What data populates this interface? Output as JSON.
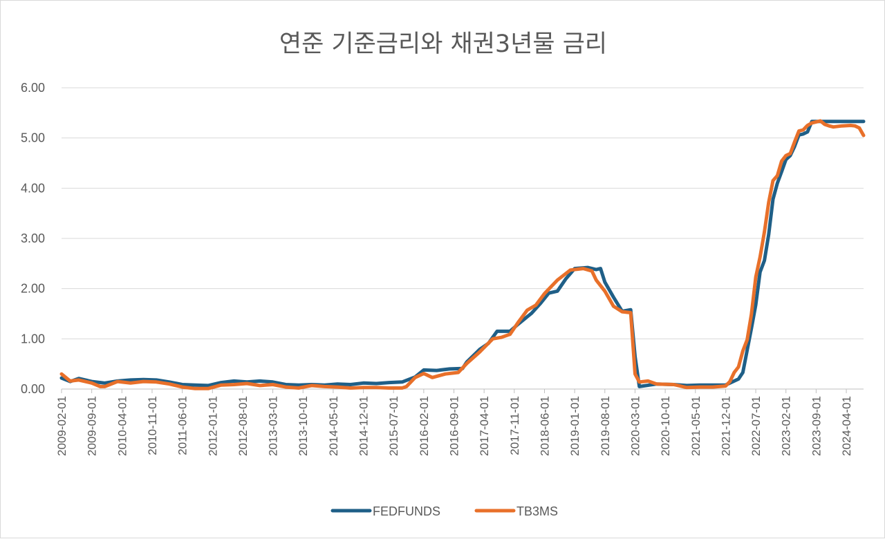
{
  "chart_data": {
    "type": "line",
    "title": "연준 기준금리와 채권3년물 금리",
    "xlabel": "",
    "ylabel": "",
    "ylim": [
      0,
      6
    ],
    "y_ticks": [
      "0.00",
      "1.00",
      "2.00",
      "3.00",
      "4.00",
      "5.00",
      "6.00"
    ],
    "x_tick_labels": [
      "2009-02-01",
      "2009-09-01",
      "2010-04-01",
      "2010-11-01",
      "2011-06-01",
      "2012-01-01",
      "2012-08-01",
      "2013-03-01",
      "2013-10-01",
      "2014-05-01",
      "2014-12-01",
      "2015-07-01",
      "2016-02-01",
      "2016-09-01",
      "2017-04-01",
      "2017-11-01",
      "2018-06-01",
      "2019-01-01",
      "2019-08-01",
      "2020-03-01",
      "2020-10-01",
      "2021-05-01",
      "2021-12-01",
      "2022-07-01",
      "2023-02-01",
      "2023-09-01",
      "2024-04-01"
    ],
    "x_range": [
      "2009-02-01",
      "2024-08-01"
    ],
    "grid": "horizontal",
    "legend_position": "bottom",
    "colors": {
      "FEDFUNDS": "#1f5f87",
      "TB3MS": "#e8702a"
    },
    "series": [
      {
        "name": "FEDFUNDS",
        "points": [
          [
            "2009-02-01",
            0.22
          ],
          [
            "2009-04-01",
            0.15
          ],
          [
            "2009-06-01",
            0.21
          ],
          [
            "2009-09-01",
            0.15
          ],
          [
            "2009-12-01",
            0.12
          ],
          [
            "2010-03-01",
            0.16
          ],
          [
            "2010-06-01",
            0.18
          ],
          [
            "2010-09-01",
            0.19
          ],
          [
            "2010-12-01",
            0.18
          ],
          [
            "2011-03-01",
            0.14
          ],
          [
            "2011-06-01",
            0.09
          ],
          [
            "2011-09-01",
            0.08
          ],
          [
            "2011-12-01",
            0.07
          ],
          [
            "2012-03-01",
            0.13
          ],
          [
            "2012-06-01",
            0.16
          ],
          [
            "2012-09-01",
            0.14
          ],
          [
            "2012-12-01",
            0.16
          ],
          [
            "2013-03-01",
            0.14
          ],
          [
            "2013-06-01",
            0.09
          ],
          [
            "2013-09-01",
            0.08
          ],
          [
            "2013-12-01",
            0.09
          ],
          [
            "2014-03-01",
            0.08
          ],
          [
            "2014-06-01",
            0.1
          ],
          [
            "2014-09-01",
            0.09
          ],
          [
            "2014-12-01",
            0.12
          ],
          [
            "2015-03-01",
            0.11
          ],
          [
            "2015-06-01",
            0.13
          ],
          [
            "2015-09-01",
            0.14
          ],
          [
            "2015-12-01",
            0.24
          ],
          [
            "2016-02-01",
            0.38
          ],
          [
            "2016-05-01",
            0.37
          ],
          [
            "2016-08-01",
            0.4
          ],
          [
            "2016-11-01",
            0.41
          ],
          [
            "2016-12-01",
            0.54
          ],
          [
            "2017-03-01",
            0.79
          ],
          [
            "2017-05-01",
            0.91
          ],
          [
            "2017-07-01",
            1.15
          ],
          [
            "2017-10-01",
            1.15
          ],
          [
            "2017-12-01",
            1.3
          ],
          [
            "2018-03-01",
            1.51
          ],
          [
            "2018-05-01",
            1.7
          ],
          [
            "2018-07-01",
            1.91
          ],
          [
            "2018-09-01",
            1.95
          ],
          [
            "2018-11-01",
            2.2
          ],
          [
            "2019-01-01",
            2.4
          ],
          [
            "2019-04-01",
            2.42
          ],
          [
            "2019-06-01",
            2.38
          ],
          [
            "2019-07-01",
            2.4
          ],
          [
            "2019-08-01",
            2.13
          ],
          [
            "2019-10-01",
            1.83
          ],
          [
            "2019-12-01",
            1.55
          ],
          [
            "2020-02-01",
            1.58
          ],
          [
            "2020-03-01",
            0.65
          ],
          [
            "2020-04-01",
            0.05
          ],
          [
            "2020-08-01",
            0.1
          ],
          [
            "2020-12-01",
            0.09
          ],
          [
            "2021-03-01",
            0.07
          ],
          [
            "2021-06-01",
            0.08
          ],
          [
            "2021-09-01",
            0.08
          ],
          [
            "2021-12-01",
            0.08
          ],
          [
            "2022-03-01",
            0.2
          ],
          [
            "2022-04-01",
            0.33
          ],
          [
            "2022-05-01",
            0.77
          ],
          [
            "2022-06-01",
            1.21
          ],
          [
            "2022-07-01",
            1.68
          ],
          [
            "2022-08-01",
            2.33
          ],
          [
            "2022-09-01",
            2.56
          ],
          [
            "2022-10-01",
            3.08
          ],
          [
            "2022-11-01",
            3.78
          ],
          [
            "2022-12-01",
            4.1
          ],
          [
            "2023-01-01",
            4.33
          ],
          [
            "2023-02-01",
            4.57
          ],
          [
            "2023-03-01",
            4.65
          ],
          [
            "2023-04-01",
            4.83
          ],
          [
            "2023-05-01",
            5.06
          ],
          [
            "2023-06-01",
            5.08
          ],
          [
            "2023-07-01",
            5.12
          ],
          [
            "2023-08-01",
            5.33
          ],
          [
            "2023-12-01",
            5.33
          ],
          [
            "2024-08-01",
            5.33
          ]
        ]
      },
      {
        "name": "TB3MS",
        "points": [
          [
            "2009-02-01",
            0.3
          ],
          [
            "2009-04-01",
            0.16
          ],
          [
            "2009-06-01",
            0.18
          ],
          [
            "2009-09-01",
            0.12
          ],
          [
            "2009-11-01",
            0.05
          ],
          [
            "2009-12-01",
            0.05
          ],
          [
            "2010-03-01",
            0.15
          ],
          [
            "2010-06-01",
            0.12
          ],
          [
            "2010-09-01",
            0.15
          ],
          [
            "2010-12-01",
            0.14
          ],
          [
            "2011-03-01",
            0.1
          ],
          [
            "2011-06-01",
            0.04
          ],
          [
            "2011-09-01",
            0.01
          ],
          [
            "2011-12-01",
            0.01
          ],
          [
            "2012-03-01",
            0.08
          ],
          [
            "2012-06-01",
            0.09
          ],
          [
            "2012-09-01",
            0.11
          ],
          [
            "2012-12-01",
            0.07
          ],
          [
            "2013-03-01",
            0.09
          ],
          [
            "2013-06-01",
            0.04
          ],
          [
            "2013-09-01",
            0.02
          ],
          [
            "2013-12-01",
            0.07
          ],
          [
            "2014-03-01",
            0.05
          ],
          [
            "2014-06-01",
            0.04
          ],
          [
            "2014-09-01",
            0.02
          ],
          [
            "2014-12-01",
            0.03
          ],
          [
            "2015-03-01",
            0.03
          ],
          [
            "2015-06-01",
            0.02
          ],
          [
            "2015-09-01",
            0.02
          ],
          [
            "2015-10-01",
            0.05
          ],
          [
            "2015-12-01",
            0.23
          ],
          [
            "2016-02-01",
            0.31
          ],
          [
            "2016-04-01",
            0.23
          ],
          [
            "2016-07-01",
            0.3
          ],
          [
            "2016-10-01",
            0.33
          ],
          [
            "2016-12-01",
            0.51
          ],
          [
            "2017-03-01",
            0.74
          ],
          [
            "2017-06-01",
            1.0
          ],
          [
            "2017-08-01",
            1.03
          ],
          [
            "2017-10-01",
            1.09
          ],
          [
            "2017-12-01",
            1.34
          ],
          [
            "2018-02-01",
            1.57
          ],
          [
            "2018-04-01",
            1.67
          ],
          [
            "2018-06-01",
            1.9
          ],
          [
            "2018-09-01",
            2.17
          ],
          [
            "2018-12-01",
            2.37
          ],
          [
            "2019-03-01",
            2.4
          ],
          [
            "2019-05-01",
            2.35
          ],
          [
            "2019-06-01",
            2.17
          ],
          [
            "2019-08-01",
            1.95
          ],
          [
            "2019-10-01",
            1.65
          ],
          [
            "2019-12-01",
            1.54
          ],
          [
            "2020-02-01",
            1.52
          ],
          [
            "2020-03-01",
            0.3
          ],
          [
            "2020-04-01",
            0.14
          ],
          [
            "2020-06-01",
            0.16
          ],
          [
            "2020-08-01",
            0.1
          ],
          [
            "2020-12-01",
            0.09
          ],
          [
            "2021-03-01",
            0.03
          ],
          [
            "2021-06-01",
            0.04
          ],
          [
            "2021-09-01",
            0.04
          ],
          [
            "2021-12-01",
            0.06
          ],
          [
            "2022-01-01",
            0.15
          ],
          [
            "2022-02-01",
            0.33
          ],
          [
            "2022-03-01",
            0.44
          ],
          [
            "2022-04-01",
            0.76
          ],
          [
            "2022-05-01",
            0.98
          ],
          [
            "2022-06-01",
            1.49
          ],
          [
            "2022-07-01",
            2.23
          ],
          [
            "2022-08-01",
            2.63
          ],
          [
            "2022-09-01",
            3.13
          ],
          [
            "2022-10-01",
            3.72
          ],
          [
            "2022-11-01",
            4.15
          ],
          [
            "2022-12-01",
            4.25
          ],
          [
            "2023-01-01",
            4.54
          ],
          [
            "2023-02-01",
            4.65
          ],
          [
            "2023-03-01",
            4.69
          ],
          [
            "2023-04-01",
            4.92
          ],
          [
            "2023-05-01",
            5.14
          ],
          [
            "2023-06-01",
            5.16
          ],
          [
            "2023-07-01",
            5.25
          ],
          [
            "2023-08-01",
            5.3
          ],
          [
            "2023-09-01",
            5.32
          ],
          [
            "2023-10-01",
            5.34
          ],
          [
            "2023-11-01",
            5.27
          ],
          [
            "2023-12-01",
            5.24
          ],
          [
            "2024-01-01",
            5.22
          ],
          [
            "2024-03-01",
            5.24
          ],
          [
            "2024-05-01",
            5.25
          ],
          [
            "2024-06-01",
            5.24
          ],
          [
            "2024-07-01",
            5.2
          ],
          [
            "2024-08-01",
            5.05
          ]
        ]
      }
    ]
  }
}
